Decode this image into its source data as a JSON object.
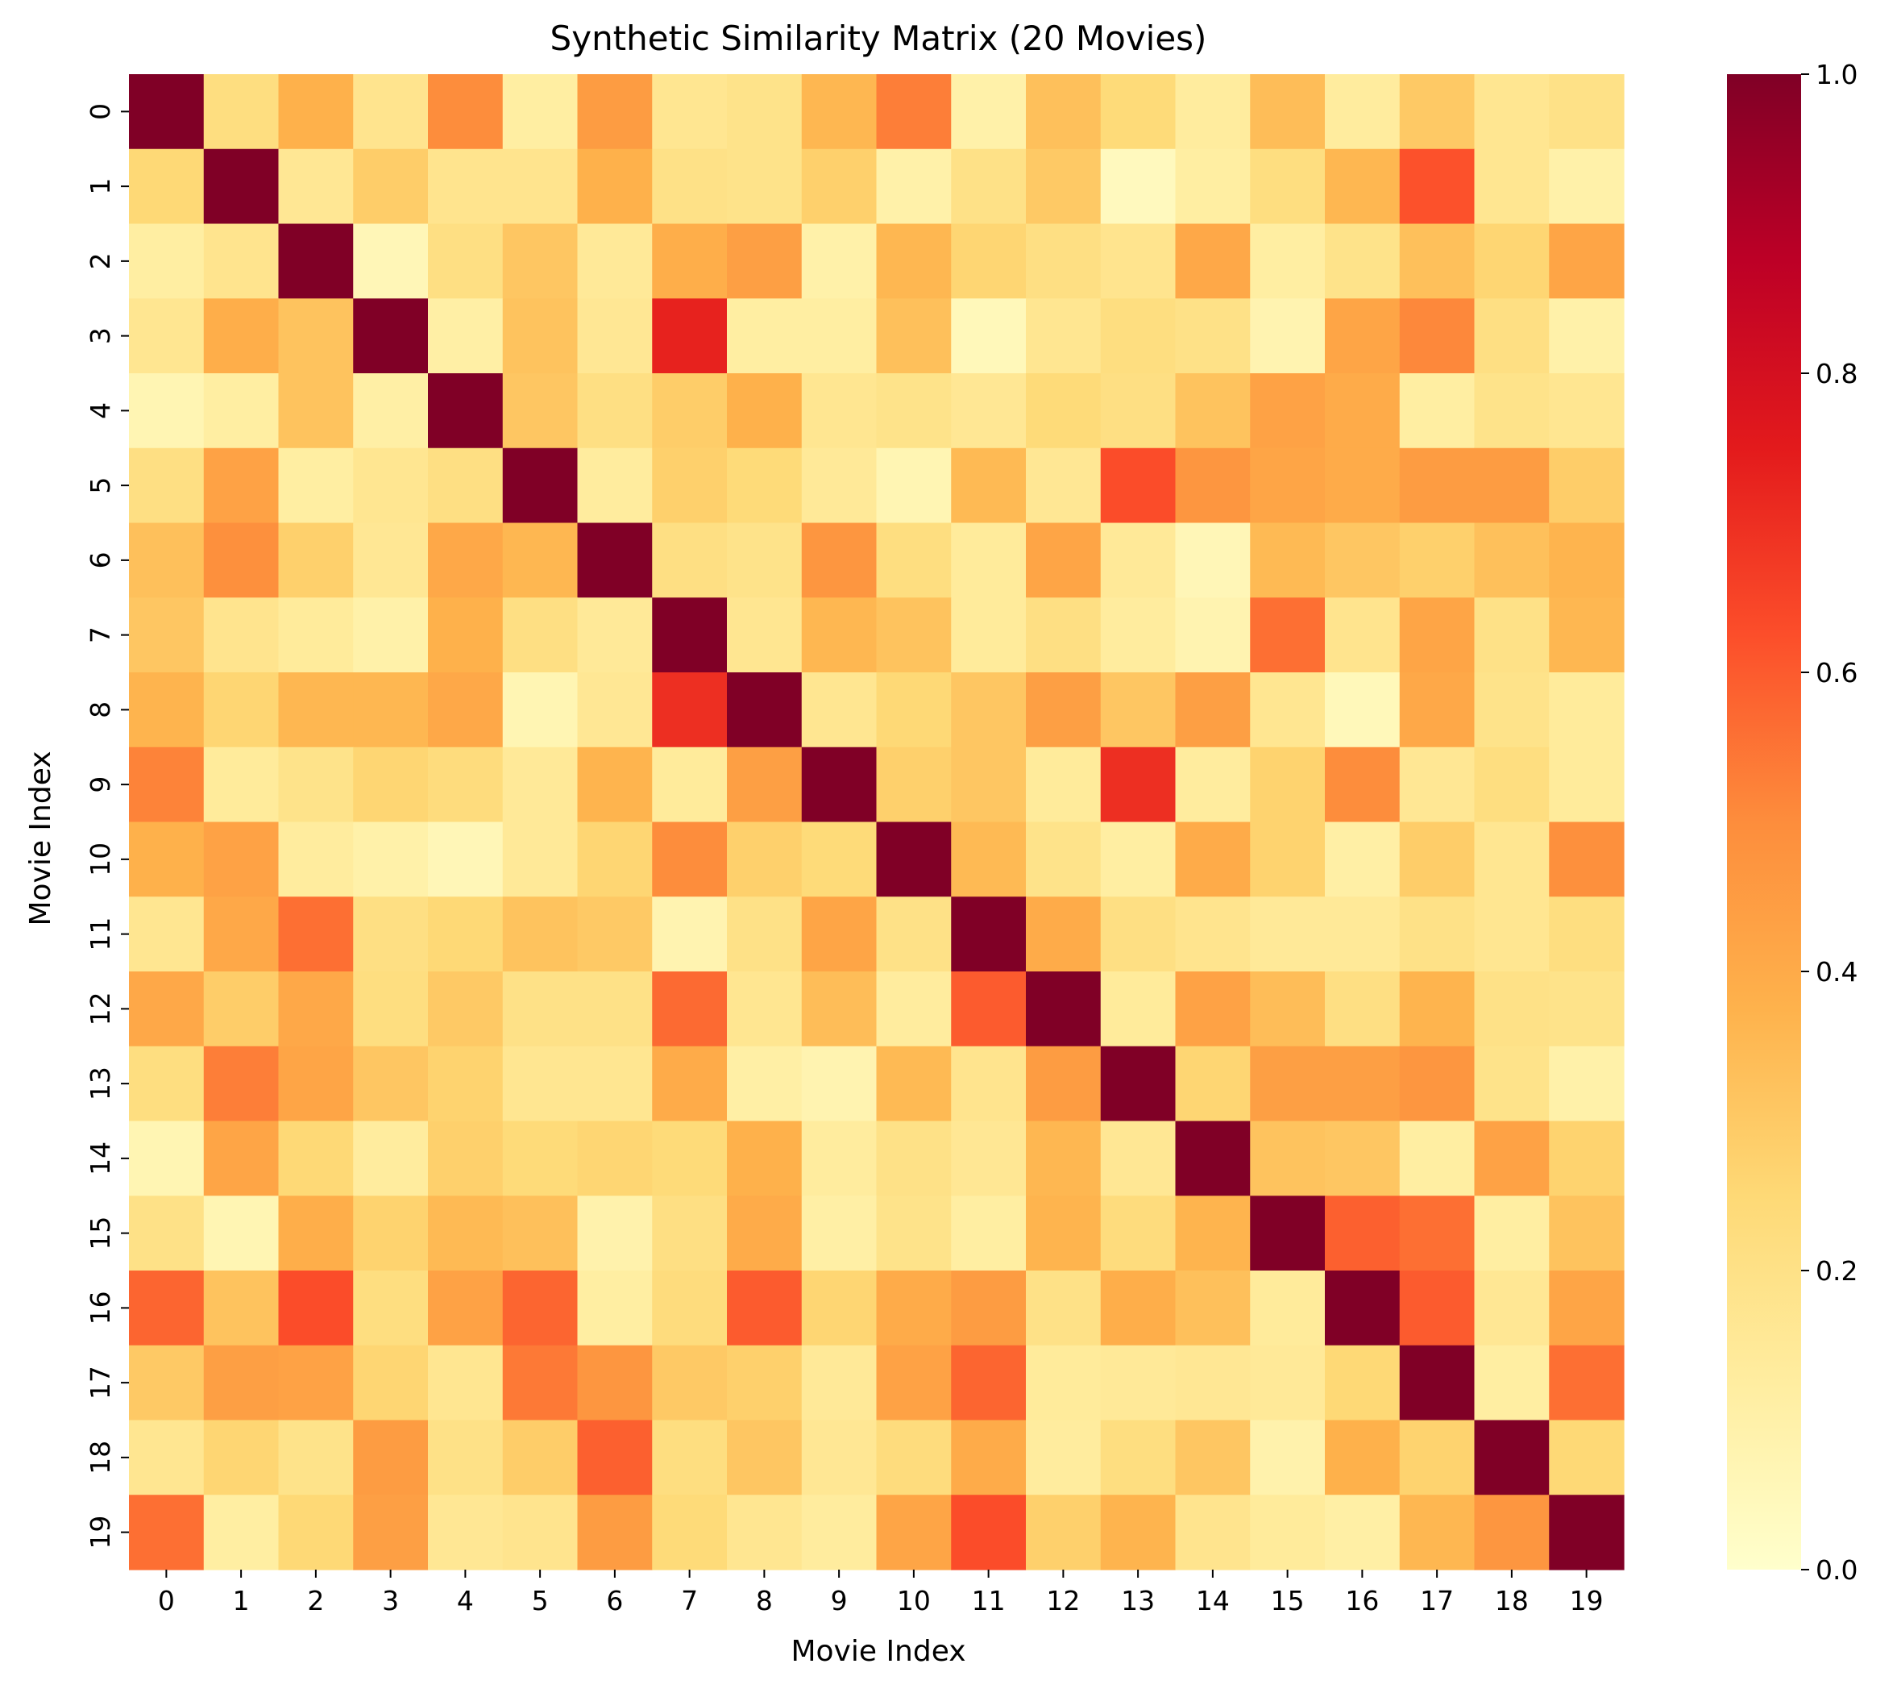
{
  "chart_data": {
    "type": "heatmap",
    "title": "Synthetic Similarity Matrix (20 Movies)",
    "xlabel": "Movie Index",
    "ylabel": "Movie Index",
    "x_categories": [
      "0",
      "1",
      "2",
      "3",
      "4",
      "5",
      "6",
      "7",
      "8",
      "9",
      "10",
      "11",
      "12",
      "13",
      "14",
      "15",
      "16",
      "17",
      "18",
      "19"
    ],
    "y_categories": [
      "0",
      "1",
      "2",
      "3",
      "4",
      "5",
      "6",
      "7",
      "8",
      "9",
      "10",
      "11",
      "12",
      "13",
      "14",
      "15",
      "16",
      "17",
      "18",
      "19"
    ],
    "colormap": "YlOrRd",
    "colorbar": {
      "range": [
        0,
        1
      ],
      "ticks": [
        "0.0",
        "0.2",
        "0.4",
        "0.6",
        "0.8",
        "1.0"
      ]
    },
    "matrix": [
      [
        1.0,
        0.22,
        0.38,
        0.18,
        0.5,
        0.12,
        0.45,
        0.17,
        0.19,
        0.36,
        0.53,
        0.1,
        0.33,
        0.24,
        0.13,
        0.34,
        0.13,
        0.3,
        0.17,
        0.2
      ],
      [
        0.25,
        1.0,
        0.16,
        0.29,
        0.18,
        0.18,
        0.38,
        0.2,
        0.19,
        0.28,
        0.1,
        0.2,
        0.3,
        0.04,
        0.12,
        0.22,
        0.36,
        0.62,
        0.17,
        0.1
      ],
      [
        0.12,
        0.18,
        1.0,
        0.06,
        0.21,
        0.31,
        0.15,
        0.39,
        0.44,
        0.1,
        0.36,
        0.26,
        0.21,
        0.18,
        0.41,
        0.12,
        0.19,
        0.33,
        0.26,
        0.42
      ],
      [
        0.17,
        0.39,
        0.32,
        1.0,
        0.11,
        0.32,
        0.16,
        0.73,
        0.12,
        0.12,
        0.33,
        0.05,
        0.17,
        0.22,
        0.2,
        0.08,
        0.42,
        0.51,
        0.21,
        0.1
      ],
      [
        0.07,
        0.12,
        0.32,
        0.11,
        1.0,
        0.31,
        0.21,
        0.29,
        0.38,
        0.17,
        0.19,
        0.16,
        0.24,
        0.21,
        0.32,
        0.43,
        0.4,
        0.12,
        0.19,
        0.17
      ],
      [
        0.21,
        0.43,
        0.12,
        0.17,
        0.21,
        1.0,
        0.13,
        0.28,
        0.24,
        0.15,
        0.07,
        0.35,
        0.16,
        0.63,
        0.47,
        0.42,
        0.4,
        0.45,
        0.45,
        0.29
      ],
      [
        0.33,
        0.49,
        0.28,
        0.16,
        0.41,
        0.36,
        1.0,
        0.21,
        0.19,
        0.47,
        0.22,
        0.14,
        0.42,
        0.15,
        0.06,
        0.35,
        0.31,
        0.28,
        0.33,
        0.37
      ],
      [
        0.31,
        0.18,
        0.14,
        0.1,
        0.38,
        0.21,
        0.15,
        1.0,
        0.17,
        0.36,
        0.32,
        0.14,
        0.21,
        0.13,
        0.08,
        0.56,
        0.18,
        0.42,
        0.2,
        0.36
      ],
      [
        0.37,
        0.26,
        0.36,
        0.36,
        0.41,
        0.07,
        0.16,
        0.7,
        1.0,
        0.17,
        0.25,
        0.31,
        0.44,
        0.31,
        0.44,
        0.17,
        0.05,
        0.41,
        0.19,
        0.14
      ],
      [
        0.52,
        0.14,
        0.19,
        0.26,
        0.23,
        0.15,
        0.37,
        0.14,
        0.44,
        1.0,
        0.28,
        0.31,
        0.14,
        0.7,
        0.13,
        0.27,
        0.5,
        0.16,
        0.22,
        0.14
      ],
      [
        0.38,
        0.43,
        0.13,
        0.1,
        0.06,
        0.15,
        0.26,
        0.5,
        0.28,
        0.24,
        1.0,
        0.35,
        0.19,
        0.12,
        0.4,
        0.27,
        0.11,
        0.29,
        0.17,
        0.49
      ],
      [
        0.17,
        0.41,
        0.56,
        0.21,
        0.25,
        0.32,
        0.3,
        0.08,
        0.2,
        0.42,
        0.2,
        1.0,
        0.4,
        0.21,
        0.18,
        0.15,
        0.15,
        0.2,
        0.17,
        0.22
      ],
      [
        0.41,
        0.29,
        0.41,
        0.22,
        0.3,
        0.2,
        0.2,
        0.57,
        0.17,
        0.34,
        0.13,
        0.6,
        1.0,
        0.14,
        0.43,
        0.34,
        0.21,
        0.37,
        0.2,
        0.19
      ],
      [
        0.22,
        0.53,
        0.42,
        0.31,
        0.27,
        0.17,
        0.17,
        0.4,
        0.11,
        0.08,
        0.35,
        0.18,
        0.45,
        1.0,
        0.26,
        0.44,
        0.44,
        0.47,
        0.19,
        0.1
      ],
      [
        0.07,
        0.42,
        0.25,
        0.13,
        0.28,
        0.24,
        0.26,
        0.24,
        0.38,
        0.13,
        0.2,
        0.16,
        0.36,
        0.16,
        1.0,
        0.32,
        0.31,
        0.12,
        0.43,
        0.27
      ],
      [
        0.2,
        0.07,
        0.39,
        0.27,
        0.35,
        0.33,
        0.09,
        0.21,
        0.4,
        0.11,
        0.19,
        0.12,
        0.37,
        0.23,
        0.37,
        1.0,
        0.59,
        0.56,
        0.12,
        0.32
      ],
      [
        0.58,
        0.32,
        0.63,
        0.22,
        0.43,
        0.58,
        0.12,
        0.23,
        0.6,
        0.26,
        0.4,
        0.45,
        0.2,
        0.39,
        0.33,
        0.14,
        1.0,
        0.6,
        0.16,
        0.42
      ],
      [
        0.3,
        0.44,
        0.43,
        0.26,
        0.17,
        0.54,
        0.47,
        0.3,
        0.28,
        0.15,
        0.43,
        0.58,
        0.14,
        0.15,
        0.16,
        0.15,
        0.25,
        1.0,
        0.12,
        0.56
      ],
      [
        0.17,
        0.26,
        0.19,
        0.45,
        0.2,
        0.29,
        0.59,
        0.22,
        0.31,
        0.16,
        0.23,
        0.4,
        0.13,
        0.22,
        0.31,
        0.09,
        0.38,
        0.27,
        1.0,
        0.25
      ],
      [
        0.56,
        0.12,
        0.25,
        0.44,
        0.16,
        0.18,
        0.45,
        0.24,
        0.17,
        0.13,
        0.42,
        0.63,
        0.28,
        0.37,
        0.18,
        0.14,
        0.11,
        0.36,
        0.47,
        1.0
      ]
    ]
  }
}
